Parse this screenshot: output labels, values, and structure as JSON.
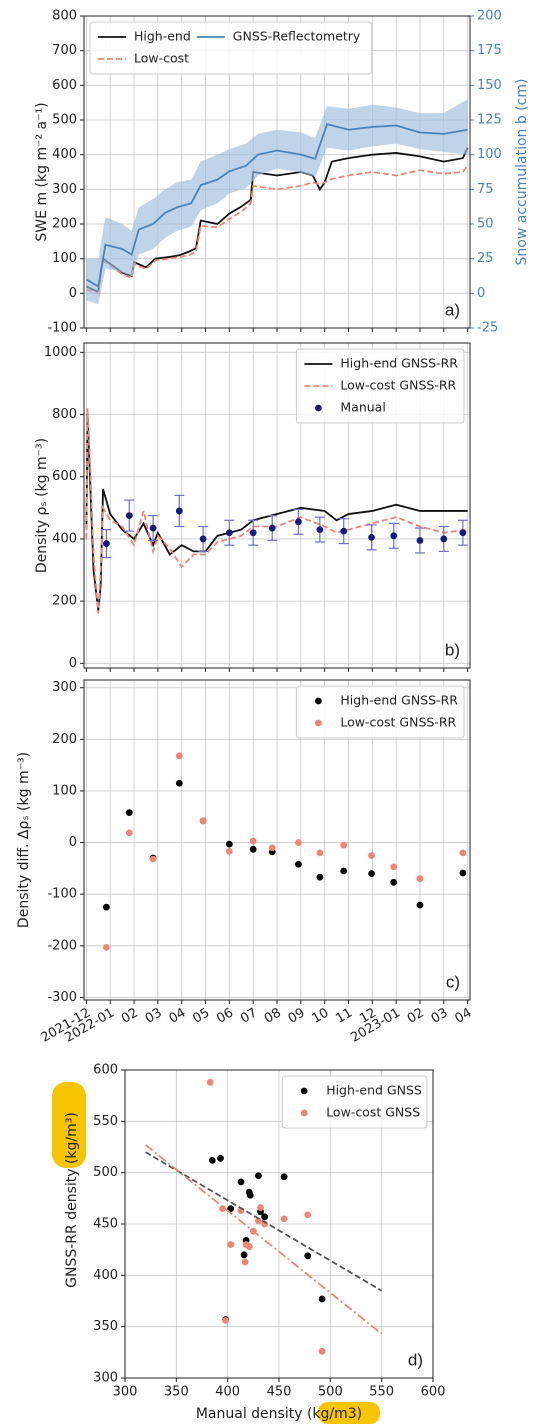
{
  "chart_data": [
    {
      "type": "line",
      "ylabel": "SWE m (kg m⁻² a⁻¹)",
      "y2label": "Snow accumulation b (cm)",
      "annotation": "a)",
      "xlim": [
        -0.1,
        16.1
      ],
      "xticks": [
        0,
        1,
        2,
        3,
        4,
        5,
        6,
        7,
        8,
        9,
        10,
        11,
        12,
        13,
        14,
        15,
        16
      ],
      "xtick_labels": false,
      "ylim": [
        -100,
        800
      ],
      "yticks": [
        -100,
        0,
        100,
        200,
        300,
        400,
        500,
        600,
        700,
        800
      ],
      "y2lim": [
        -25,
        200
      ],
      "y2ticks": [
        -25,
        0,
        25,
        50,
        75,
        100,
        125,
        150,
        175,
        200
      ],
      "y2_color": "#4a84b8",
      "grid": true,
      "legend": "upper left",
      "legend_ncol": 2,
      "series": [
        {
          "name": "High-end",
          "color": "#111111",
          "x": [
            0,
            0.3,
            0.5,
            0.6,
            0.7,
            1.0,
            1.5,
            1.9,
            2.0,
            2.5,
            2.9,
            3.5,
            3.9,
            4.3,
            4.6,
            4.8,
            5.5,
            6.0,
            6.5,
            6.9,
            7.0,
            8.0,
            9.0,
            9.5,
            9.8,
            10.0,
            10.3,
            11.0,
            12.0,
            13.0,
            14.0,
            15.0,
            15.8,
            16.0
          ],
          "values": [
            20,
            10,
            5,
            60,
            100,
            85,
            60,
            50,
            90,
            75,
            100,
            105,
            110,
            120,
            130,
            210,
            200,
            230,
            250,
            270,
            350,
            340,
            350,
            340,
            300,
            320,
            380,
            390,
            400,
            405,
            395,
            380,
            390,
            420
          ]
        },
        {
          "name": "Low-cost",
          "color": "#f08575",
          "dash": "dashed",
          "x": [
            0,
            0.3,
            0.5,
            0.6,
            0.7,
            1.0,
            1.5,
            1.9,
            2.0,
            2.5,
            2.9,
            3.5,
            3.9,
            4.3,
            4.6,
            4.8,
            5.5,
            6.0,
            6.5,
            6.9,
            7.0,
            8.0,
            9.0,
            9.5,
            9.8,
            10.0,
            10.3,
            11.0,
            12.0,
            13.0,
            14.0,
            15.0,
            15.8,
            16.0
          ],
          "values": [
            10,
            5,
            0,
            55,
            95,
            80,
            55,
            45,
            85,
            70,
            95,
            100,
            105,
            110,
            120,
            195,
            190,
            215,
            235,
            260,
            310,
            300,
            310,
            320,
            315,
            320,
            330,
            340,
            350,
            340,
            355,
            345,
            350,
            370
          ]
        },
        {
          "name": "GNSS-Reflectometry",
          "color": "#4a84b8",
          "band_color": "#9dbcdd",
          "axis": "y2",
          "x": [
            0,
            0.5,
            0.8,
            1.5,
            1.9,
            2.2,
            2.8,
            3.3,
            3.8,
            4.4,
            4.8,
            5.5,
            6.0,
            6.7,
            7.2,
            8.0,
            9.0,
            9.6,
            10.1,
            11.0,
            12.0,
            13.0,
            14.0,
            15.0,
            16.0
          ],
          "values": [
            10,
            5,
            35,
            32,
            28,
            46,
            50,
            58,
            62,
            65,
            78,
            82,
            88,
            92,
            100,
            103,
            100,
            97,
            122,
            118,
            120,
            121,
            116,
            115,
            118
          ],
          "lower": [
            -5,
            -8,
            18,
            15,
            12,
            28,
            32,
            40,
            45,
            48,
            60,
            65,
            72,
            76,
            85,
            90,
            87,
            84,
            105,
            103,
            106,
            108,
            104,
            102,
            100
          ],
          "upper": [
            25,
            25,
            55,
            50,
            45,
            62,
            68,
            75,
            80,
            82,
            95,
            100,
            104,
            108,
            115,
            118,
            116,
            112,
            135,
            133,
            136,
            134,
            130,
            130,
            140
          ]
        }
      ]
    },
    {
      "type": "line",
      "ylabel": "Density ρₛ (kg m⁻³)",
      "annotation": "b)",
      "xlim": [
        -0.1,
        16.1
      ],
      "xticks": [
        0,
        1,
        2,
        3,
        4,
        5,
        6,
        7,
        8,
        9,
        10,
        11,
        12,
        13,
        14,
        15,
        16
      ],
      "xtick_labels": false,
      "ylim": [
        -15,
        1030
      ],
      "yticks": [
        0,
        200,
        400,
        600,
        800,
        1000
      ],
      "grid": true,
      "legend": "upper right",
      "series": [
        {
          "name": "High-end GNSS-RR",
          "color": "#111111",
          "x": [
            0,
            0.05,
            0.15,
            0.3,
            0.5,
            0.6,
            0.7,
            1.0,
            1.5,
            2.0,
            2.4,
            2.8,
            3.0,
            3.5,
            4.0,
            4.5,
            5.0,
            5.5,
            6.0,
            6.5,
            7.0,
            8.0,
            9.0,
            10.0,
            10.5,
            11.0,
            12.0,
            13.0,
            14.0,
            15.0,
            16.0
          ],
          "values": [
            430,
            800,
            600,
            300,
            170,
            250,
            560,
            480,
            430,
            400,
            450,
            380,
            420,
            350,
            380,
            360,
            360,
            410,
            420,
            430,
            460,
            480,
            500,
            490,
            460,
            480,
            490,
            510,
            490,
            490,
            490
          ]
        },
        {
          "name": "Low-cost GNSS-RR",
          "color": "#f08575",
          "dash": "dashed",
          "x": [
            0,
            0.05,
            0.15,
            0.3,
            0.5,
            0.6,
            0.7,
            1.0,
            1.5,
            2.0,
            2.4,
            2.8,
            3.0,
            3.5,
            4.0,
            4.5,
            5.0,
            5.5,
            6.0,
            6.5,
            7.0,
            8.0,
            9.0,
            10.0,
            10.5,
            11.0,
            12.0,
            13.0,
            14.0,
            15.0,
            16.0
          ],
          "values": [
            400,
            820,
            650,
            350,
            160,
            300,
            500,
            460,
            440,
            380,
            490,
            360,
            410,
            370,
            310,
            350,
            350,
            390,
            400,
            410,
            440,
            440,
            470,
            440,
            420,
            430,
            450,
            470,
            440,
            420,
            430
          ]
        },
        {
          "name": "Manual",
          "color": "#161a80",
          "marker": true,
          "error_color": "#6f6fc9",
          "x": [
            0.84,
            1.8,
            2.8,
            3.9,
            4.9,
            6.0,
            7.0,
            7.8,
            8.9,
            9.8,
            10.8,
            11.97,
            12.9,
            14.0,
            15.0,
            15.8
          ],
          "values": [
            385,
            475,
            435,
            490,
            400,
            420,
            420,
            435,
            455,
            430,
            425,
            405,
            410,
            395,
            400,
            420
          ],
          "errors": [
            45,
            50,
            40,
            50,
            40,
            40,
            40,
            40,
            40,
            40,
            40,
            40,
            40,
            40,
            40,
            40
          ]
        }
      ]
    },
    {
      "type": "scatter",
      "ylabel": "Density diff. Δρₛ (kg m⁻³)",
      "annotation": "c)",
      "xlim": [
        -0.1,
        16.1
      ],
      "xtick_rotation": -30,
      "xticks": [
        {
          "value": 0,
          "label": "2021-12"
        },
        {
          "value": 1,
          "label": "2022-01"
        },
        {
          "value": 2,
          "label": "02"
        },
        {
          "value": 3,
          "label": "03"
        },
        {
          "value": 4,
          "label": "04"
        },
        {
          "value": 5,
          "label": "05"
        },
        {
          "value": 6,
          "label": "06"
        },
        {
          "value": 7,
          "label": "07"
        },
        {
          "value": 8,
          "label": "08"
        },
        {
          "value": 9,
          "label": "09"
        },
        {
          "value": 10,
          "label": "10"
        },
        {
          "value": 11,
          "label": "11"
        },
        {
          "value": 12,
          "label": "12"
        },
        {
          "value": 13,
          "label": "2023-01"
        },
        {
          "value": 14,
          "label": "02"
        },
        {
          "value": 15,
          "label": "03"
        },
        {
          "value": 16,
          "label": "04"
        }
      ],
      "ylim": [
        -305,
        315
      ],
      "yticks": [
        -300,
        -200,
        -100,
        0,
        100,
        200,
        300
      ],
      "grid": true,
      "legend": "upper right",
      "x": [
        0.84,
        1.8,
        2.8,
        3.9,
        4.9,
        6.0,
        7.0,
        7.8,
        8.9,
        9.8,
        10.8,
        11.97,
        12.9,
        14.0,
        15.8
      ],
      "series": [
        {
          "name": "High-end GNSS-RR",
          "color": "#000000",
          "marker": true,
          "values": [
            -125,
            58,
            -30,
            115,
            42,
            -3,
            -13,
            -18,
            -42,
            -67,
            -55,
            -60,
            -77,
            -121,
            -59
          ]
        },
        {
          "name": "Low-cost GNSS-RR",
          "color": "#f08575",
          "marker": true,
          "values": [
            -203,
            19,
            -32,
            168,
            42,
            -17,
            3,
            -10,
            0,
            -20,
            -5,
            -25,
            -47,
            -70,
            -20
          ]
        }
      ]
    },
    {
      "type": "scatter",
      "xlabel": "Manual density (kg/m3)",
      "ylabel": "GNSS-RR density (kg/m³)",
      "annotation": "d)",
      "xlim": [
        300,
        600
      ],
      "xticks": [
        300,
        350,
        400,
        450,
        500,
        550,
        600
      ],
      "ylim": [
        300,
        600
      ],
      "yticks": [
        300,
        350,
        400,
        450,
        500,
        550,
        600
      ],
      "grid": true,
      "legend": "upper right",
      "series": [
        {
          "name": "High-end GNSS",
          "color": "#000000",
          "marker": true,
          "x": [
            385,
            393,
            403,
            413,
            416,
            418,
            421,
            422,
            430,
            432,
            436,
            455,
            478,
            492,
            398
          ],
          "values": [
            512,
            514,
            465,
            491,
            420,
            434,
            481,
            478,
            497,
            462,
            457,
            496,
            419,
            377,
            357
          ]
        },
        {
          "name": "Low-cost GNSS",
          "color": "#f08575",
          "marker": true,
          "x": [
            383,
            395,
            403,
            413,
            417,
            418,
            421,
            425,
            430,
            432,
            436,
            455,
            478,
            492,
            398
          ],
          "values": [
            588,
            465,
            430,
            463,
            413,
            430,
            428,
            443,
            453,
            466,
            450,
            455,
            459,
            326,
            356
          ]
        },
        {
          "color": "#555555",
          "dash": "dashed",
          "x": [
            320,
            550
          ],
          "values": [
            520,
            385
          ]
        },
        {
          "color": "#f08575",
          "dash": "dashdot",
          "x": [
            320,
            550
          ],
          "values": [
            527,
            343
          ]
        }
      ]
    }
  ]
}
